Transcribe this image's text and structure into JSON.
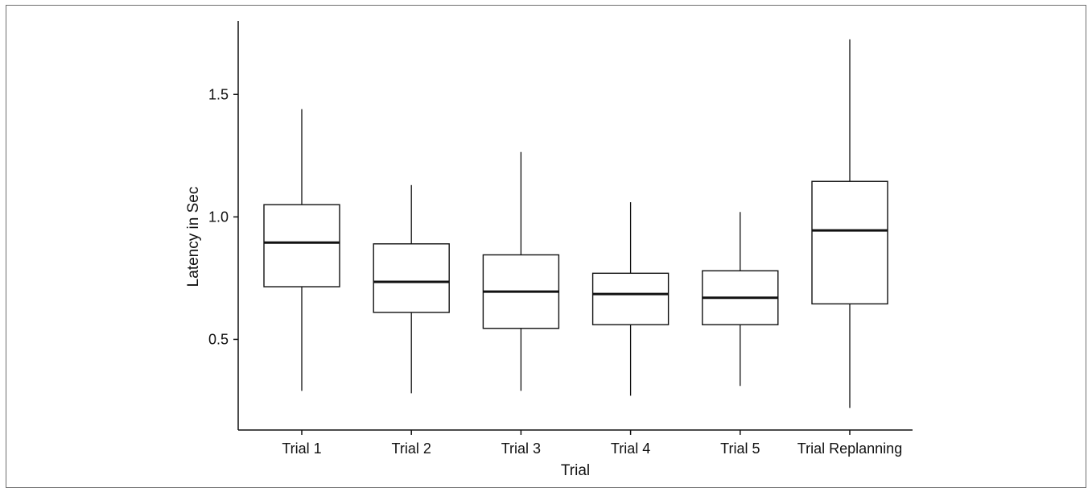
{
  "chart_data": {
    "type": "box",
    "title": "",
    "xlabel": "Trial",
    "ylabel": "Latency in Sec",
    "ylim": [
      0.13,
      1.8
    ],
    "yticks": [
      0.5,
      1.0,
      1.5
    ],
    "ytick_labels": [
      "0.5",
      "1.0",
      "1.5"
    ],
    "grid": false,
    "legend": "none",
    "categories": [
      "Trial 1",
      "Trial 2",
      "Trial 3",
      "Trial 4",
      "Trial 5",
      "Trial Replanning"
    ],
    "boxes": [
      {
        "category": "Trial 1",
        "whisker_low": 0.29,
        "q1": 0.715,
        "median": 0.895,
        "q3": 1.05,
        "whisker_high": 1.44
      },
      {
        "category": "Trial 2",
        "whisker_low": 0.28,
        "q1": 0.61,
        "median": 0.735,
        "q3": 0.89,
        "whisker_high": 1.13
      },
      {
        "category": "Trial 3",
        "whisker_low": 0.29,
        "q1": 0.545,
        "median": 0.695,
        "q3": 0.845,
        "whisker_high": 1.265
      },
      {
        "category": "Trial 4",
        "whisker_low": 0.27,
        "q1": 0.56,
        "median": 0.685,
        "q3": 0.77,
        "whisker_high": 1.06
      },
      {
        "category": "Trial 5",
        "whisker_low": 0.31,
        "q1": 0.56,
        "median": 0.67,
        "q3": 0.78,
        "whisker_high": 1.02
      },
      {
        "category": "Trial Replanning",
        "whisker_low": 0.22,
        "q1": 0.645,
        "median": 0.945,
        "q3": 1.145,
        "whisker_high": 1.725
      }
    ],
    "colors": {
      "stroke": "#111111",
      "fill": "#ffffff"
    }
  }
}
